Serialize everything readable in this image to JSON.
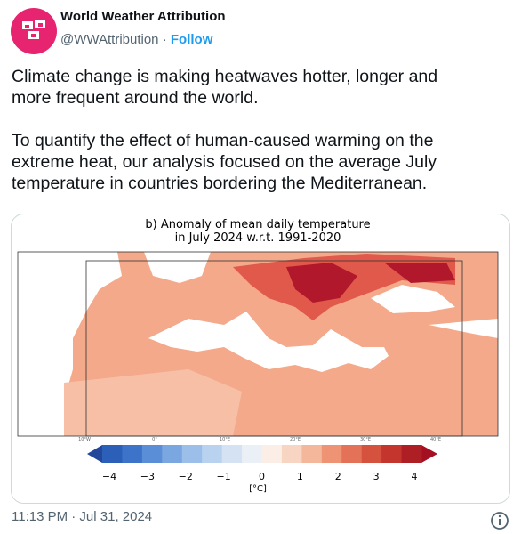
{
  "header": {
    "name": "World Weather Attribution",
    "handle": "@WWAttribution",
    "separator": "·",
    "follow": "Follow"
  },
  "tweet": {
    "paragraphs": [
      [
        "Climate change is making heatwaves hotter, longer and",
        "more frequent around the world."
      ],
      [
        "To quantify the effect of human-caused warming on the",
        "extreme heat, our analysis focused on the average July",
        "temperature in countries bordering the Mediterranean."
      ]
    ]
  },
  "image": {
    "title": [
      "b) Anomaly of mean daily temperature",
      "in July 2024 w.r.t. 1991-2020"
    ],
    "longitude_labels": [
      "10°W",
      "0°",
      "10°E",
      "20°E",
      "30°E",
      "40°E"
    ],
    "colorbar_ticks": [
      "−4",
      "−3",
      "−2",
      "−1",
      "0",
      "1",
      "2",
      "3",
      "4"
    ],
    "colorbar_unit": "[°C]"
  },
  "footer": {
    "timestamp": "11:13 PM · Jul 31, 2024"
  }
}
